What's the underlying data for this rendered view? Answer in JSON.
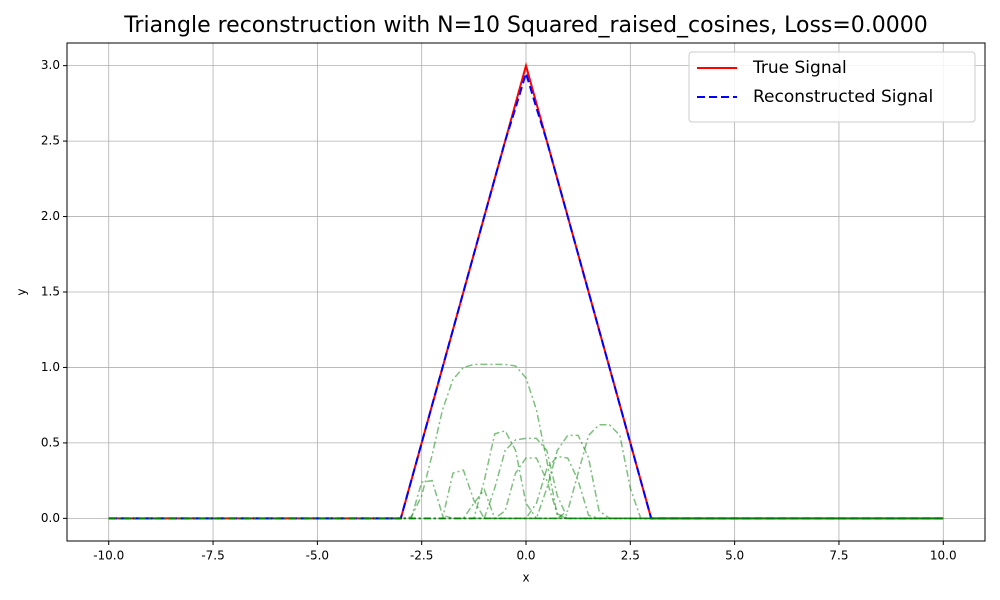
{
  "chart_data": {
    "type": "line",
    "title": "Triangle reconstruction with N=10 Squared_raised_cosines, Loss=0.0000",
    "xlabel": "x",
    "ylabel": "y",
    "x": [
      -10,
      -3,
      -2.75,
      -2.5,
      -2.25,
      -2,
      -1.75,
      -1.5,
      -1.25,
      -1,
      -0.75,
      -0.5,
      -0.25,
      0,
      0.25,
      0.5,
      0.75,
      1,
      1.25,
      1.5,
      1.75,
      2,
      2.25,
      2.5,
      2.75,
      3,
      10
    ],
    "series": [
      {
        "name": "True Signal",
        "color": "#ff0000",
        "dash": "solid",
        "width": 2,
        "opacity": 1,
        "values": [
          0,
          0,
          0.25,
          0.5,
          0.75,
          1,
          1.25,
          1.5,
          1.75,
          2,
          2.25,
          2.5,
          2.75,
          3,
          2.75,
          2.5,
          2.25,
          2,
          1.75,
          1.5,
          1.25,
          1,
          0.75,
          0.5,
          0.25,
          0,
          0
        ]
      },
      {
        "name": "Reconstructed Signal",
        "color": "#0000ff",
        "dash": "dashed",
        "width": 2,
        "opacity": 1,
        "values": [
          0,
          0,
          0.25,
          0.5,
          0.75,
          1,
          1.25,
          1.5,
          1.75,
          2,
          2.25,
          2.5,
          2.72,
          2.95,
          2.72,
          2.5,
          2.25,
          2,
          1.75,
          1.5,
          1.25,
          1,
          0.75,
          0.5,
          0.25,
          0,
          0
        ]
      },
      {
        "color": "#008000",
        "dash": "dashdot",
        "width": 1.5,
        "opacity": 0.5,
        "values": [
          0,
          0,
          0.01,
          0.15,
          0.42,
          0.72,
          0.92,
          1.0,
          1.02,
          1.02,
          1.02,
          1.02,
          1.01,
          0.93,
          0.72,
          0.38,
          0.02,
          0,
          0,
          0,
          0,
          0,
          0,
          0,
          0,
          0,
          0
        ]
      },
      {
        "color": "#008000",
        "dash": "dashdot",
        "width": 1.5,
        "opacity": 0.5,
        "values": [
          0,
          0,
          0,
          0.24,
          0.25,
          0.02,
          0,
          0,
          0,
          0,
          0,
          0,
          0,
          0,
          0,
          0,
          0,
          0,
          0,
          0,
          0,
          0,
          0,
          0,
          0,
          0,
          0
        ]
      },
      {
        "color": "#008000",
        "dash": "dashdot",
        "width": 1.5,
        "opacity": 0.5,
        "values": [
          0,
          0,
          0,
          0,
          0,
          0,
          0.3,
          0.32,
          0.12,
          0,
          0,
          0,
          0,
          0,
          0,
          0,
          0,
          0,
          0,
          0,
          0,
          0,
          0,
          0,
          0,
          0,
          0
        ]
      },
      {
        "color": "#008000",
        "dash": "dashdot",
        "width": 1.5,
        "opacity": 0.5,
        "values": [
          0,
          0,
          0,
          0,
          0,
          0,
          0,
          0,
          0.1,
          0.19,
          0,
          0,
          0,
          0,
          0,
          0,
          0,
          0,
          0,
          0,
          0,
          0,
          0,
          0,
          0,
          0,
          0
        ]
      },
      {
        "color": "#008000",
        "dash": "dashdot",
        "width": 1.5,
        "opacity": 0.5,
        "values": [
          0,
          0,
          0,
          0,
          0,
          0,
          0,
          0,
          0,
          0.25,
          0.56,
          0.58,
          0.45,
          0.1,
          0,
          0,
          0,
          0,
          0,
          0,
          0,
          0,
          0,
          0,
          0,
          0,
          0
        ]
      },
      {
        "color": "#008000",
        "dash": "dashdot",
        "width": 1.5,
        "opacity": 0.5,
        "values": [
          0,
          0,
          0,
          0,
          0,
          0,
          0,
          0,
          0,
          0,
          0.2,
          0.45,
          0.52,
          0.53,
          0.53,
          0.45,
          0.15,
          0,
          0,
          0,
          0,
          0,
          0,
          0,
          0,
          0,
          0
        ]
      },
      {
        "color": "#008000",
        "dash": "dashdot",
        "width": 1.5,
        "opacity": 0.5,
        "values": [
          0,
          0,
          0,
          0,
          0,
          0,
          0,
          0,
          0,
          0,
          0,
          0.05,
          0.3,
          0.4,
          0.4,
          0.25,
          0.03,
          0,
          0,
          0,
          0,
          0,
          0,
          0,
          0,
          0,
          0
        ]
      },
      {
        "color": "#008000",
        "dash": "dashdot",
        "width": 1.5,
        "opacity": 0.5,
        "values": [
          0,
          0,
          0,
          0,
          0,
          0,
          0,
          0,
          0,
          0,
          0,
          0,
          0,
          0,
          0.1,
          0.33,
          0.41,
          0.4,
          0.25,
          0.02,
          0,
          0,
          0,
          0,
          0,
          0,
          0
        ]
      },
      {
        "color": "#008000",
        "dash": "dashdot",
        "width": 1.5,
        "opacity": 0.5,
        "values": [
          0,
          0,
          0,
          0,
          0,
          0,
          0,
          0,
          0,
          0,
          0,
          0,
          0,
          0,
          0,
          0.2,
          0.45,
          0.55,
          0.55,
          0.4,
          0.05,
          0,
          0,
          0,
          0,
          0,
          0
        ]
      },
      {
        "color": "#008000",
        "dash": "dashdot",
        "width": 1.5,
        "opacity": 0.5,
        "values": [
          0,
          0,
          0,
          0,
          0,
          0,
          0,
          0,
          0,
          0,
          0,
          0,
          0,
          0,
          0,
          0,
          0,
          0.05,
          0.3,
          0.55,
          0.62,
          0.62,
          0.55,
          0.2,
          0,
          0,
          0
        ]
      }
    ],
    "xlim": [
      -11,
      11
    ],
    "ylim": [
      -0.15,
      3.15
    ],
    "xticks": [
      {
        "value": -10,
        "label": "-10.0"
      },
      {
        "value": -7.5,
        "label": "-7.5"
      },
      {
        "value": -5,
        "label": "-5.0"
      },
      {
        "value": -2.5,
        "label": "-2.5"
      },
      {
        "value": 0,
        "label": "0.0"
      },
      {
        "value": 2.5,
        "label": "2.5"
      },
      {
        "value": 5,
        "label": "5.0"
      },
      {
        "value": 7.5,
        "label": "7.5"
      },
      {
        "value": 10,
        "label": "10.0"
      }
    ],
    "yticks": [
      {
        "value": 0,
        "label": "0.0"
      },
      {
        "value": 0.5,
        "label": "0.5"
      },
      {
        "value": 1,
        "label": "1.0"
      },
      {
        "value": 1.5,
        "label": "1.5"
      },
      {
        "value": 2,
        "label": "2.0"
      },
      {
        "value": 2.5,
        "label": "2.5"
      },
      {
        "value": 3,
        "label": "3.0"
      }
    ],
    "grid": true,
    "legend": "upper right"
  }
}
